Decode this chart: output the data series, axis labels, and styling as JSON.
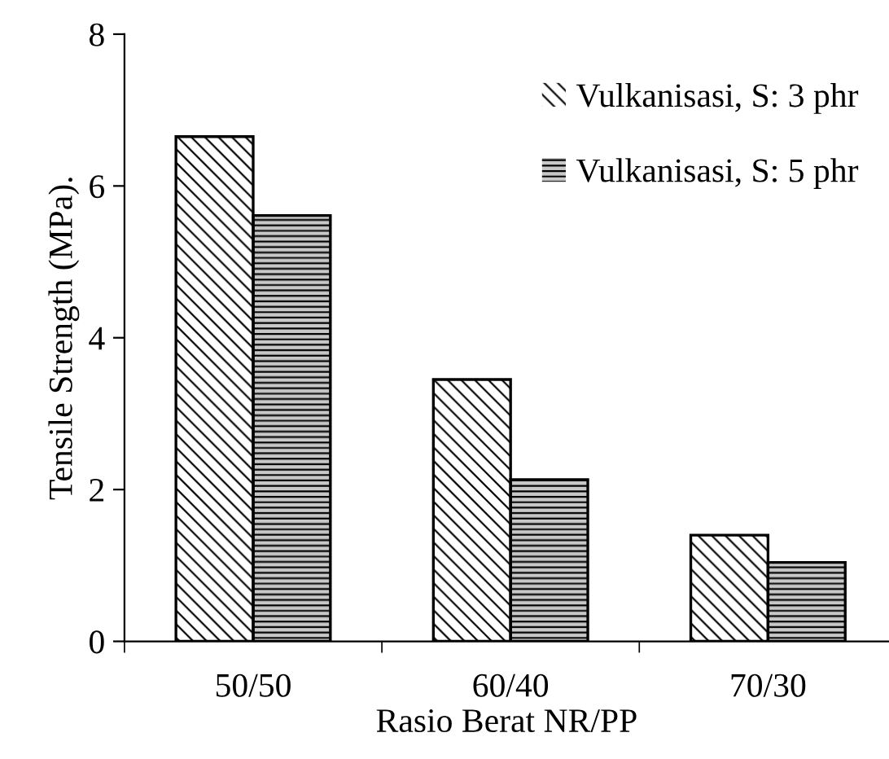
{
  "chart_data": {
    "type": "bar",
    "xlabel": "Rasio Berat NR/PP",
    "ylabel": "Tensile Strength (MPa).",
    "categories": [
      "50/50",
      "60/40",
      "70/30"
    ],
    "series": [
      {
        "name": "Vulkanisasi, S: 3 phr",
        "color": "#ffffff",
        "values": [
          6.65,
          3.45,
          1.4
        ]
      },
      {
        "name": "Vulkanisasi, S: 5 phr",
        "color": "#c8c8c8",
        "values": [
          5.61,
          2.13,
          1.04
        ]
      }
    ],
    "ylim": [
      0,
      8
    ],
    "yticks": [
      0,
      2,
      4,
      6,
      8
    ],
    "grid": false,
    "legend": "top right"
  }
}
